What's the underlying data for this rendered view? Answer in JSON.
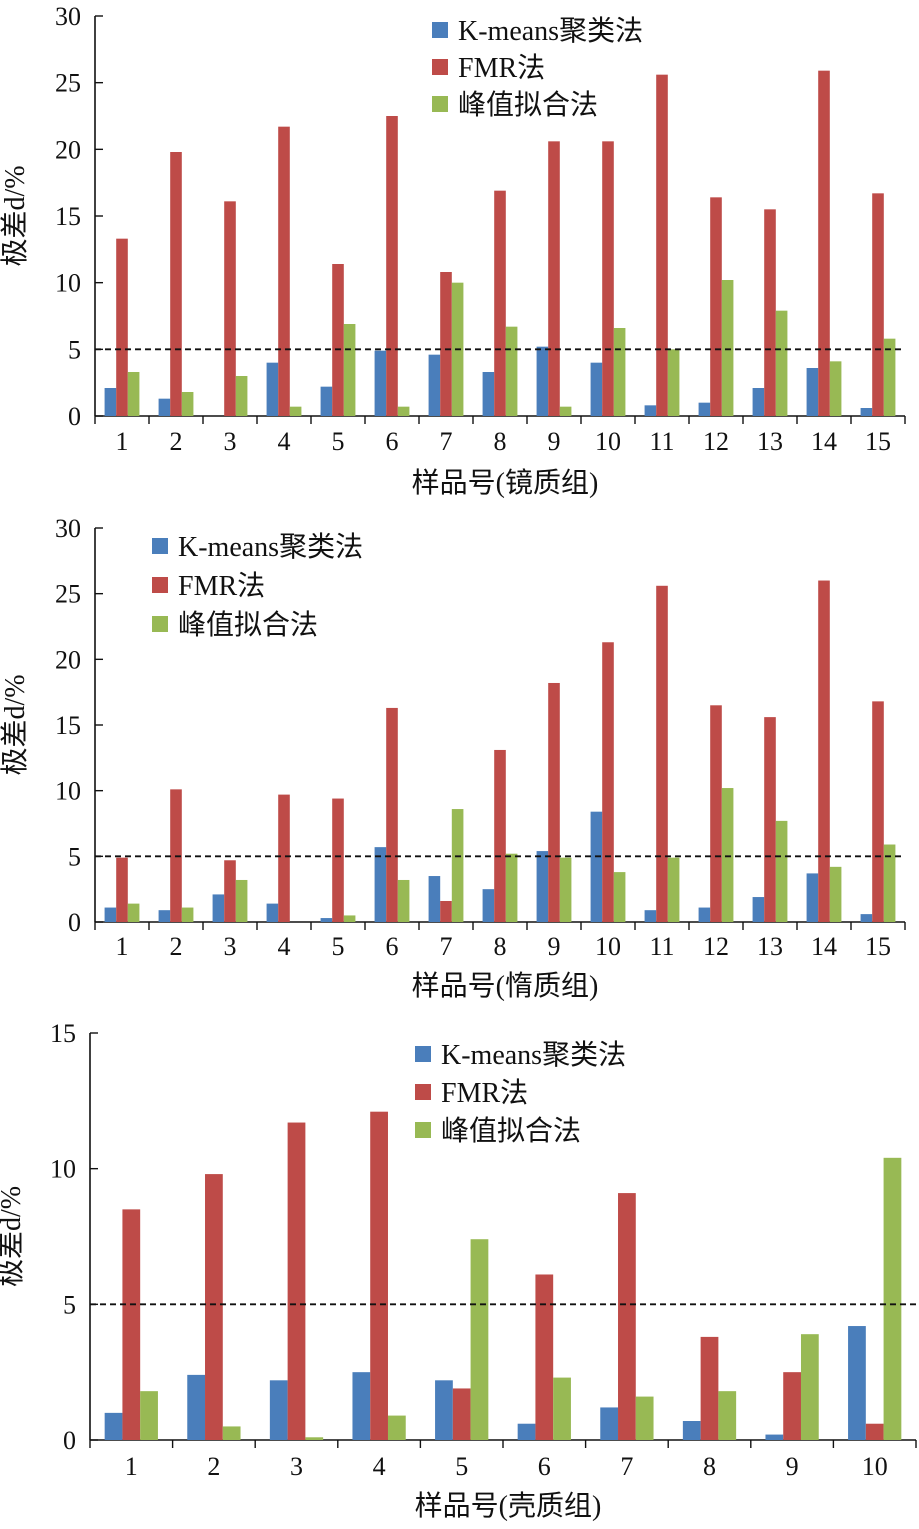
{
  "colors": {
    "kmeans": "#4a7ebb",
    "fmr": "#be4b48",
    "peak": "#98b954",
    "axis": "#111111",
    "refline": "#111111"
  },
  "chart_data": [
    {
      "type": "bar",
      "xlabel": "样品号(镜质组)",
      "ylabel": "极差d/%",
      "ylim": [
        0,
        30
      ],
      "yticks": [
        0,
        5,
        10,
        15,
        20,
        25,
        30
      ],
      "reference_line": 5,
      "legend_position": "top-center",
      "categories": [
        "1",
        "2",
        "3",
        "4",
        "5",
        "6",
        "7",
        "8",
        "9",
        "10",
        "11",
        "12",
        "13",
        "14",
        "15"
      ],
      "series": [
        {
          "name": "K-means聚类法",
          "values": [
            2.1,
            1.3,
            0,
            4.0,
            2.2,
            4.9,
            4.6,
            3.3,
            5.2,
            4.0,
            0.8,
            1.0,
            2.1,
            3.6,
            0.6
          ]
        },
        {
          "name": "FMR法",
          "values": [
            13.3,
            19.8,
            16.1,
            21.7,
            11.4,
            22.5,
            10.8,
            16.9,
            20.6,
            20.6,
            25.6,
            16.4,
            15.5,
            25.9,
            16.7
          ]
        },
        {
          "name": "峰值拟合法",
          "values": [
            3.3,
            1.8,
            3.0,
            0.7,
            6.9,
            0.7,
            10.0,
            6.7,
            0.7,
            6.6,
            5.0,
            10.2,
            7.9,
            4.1,
            5.8
          ]
        }
      ]
    },
    {
      "type": "bar",
      "xlabel": "样品号(惰质组)",
      "ylabel": "极差d/%",
      "ylim": [
        0,
        30
      ],
      "yticks": [
        0,
        5,
        10,
        15,
        20,
        25,
        30
      ],
      "reference_line": 5,
      "legend_position": "top-left",
      "categories": [
        "1",
        "2",
        "3",
        "4",
        "5",
        "6",
        "7",
        "8",
        "9",
        "10",
        "11",
        "12",
        "13",
        "14",
        "15"
      ],
      "series": [
        {
          "name": "K-means聚类法",
          "values": [
            1.1,
            0.9,
            2.1,
            1.4,
            0.3,
            5.7,
            3.5,
            2.5,
            5.4,
            8.4,
            0.9,
            1.1,
            1.9,
            3.7,
            0.6
          ]
        },
        {
          "name": "FMR法",
          "values": [
            4.9,
            10.1,
            4.7,
            9.7,
            9.4,
            16.3,
            1.6,
            13.1,
            18.2,
            21.3,
            25.6,
            16.5,
            15.6,
            26.0,
            16.8
          ]
        },
        {
          "name": "峰值拟合法",
          "values": [
            1.4,
            1.1,
            3.2,
            0,
            0.5,
            3.2,
            8.6,
            5.2,
            4.9,
            3.8,
            4.9,
            10.2,
            7.7,
            4.2,
            5.9
          ]
        }
      ]
    },
    {
      "type": "bar",
      "xlabel": "样品号(壳质组)",
      "ylabel": "极差d/%",
      "ylim": [
        0,
        15
      ],
      "yticks": [
        0,
        5,
        10,
        15
      ],
      "reference_line": 5,
      "legend_position": "top-center",
      "categories": [
        "1",
        "2",
        "3",
        "4",
        "5",
        "6",
        "7",
        "8",
        "9",
        "10"
      ],
      "series": [
        {
          "name": "K-means聚类法",
          "values": [
            1.0,
            2.4,
            2.2,
            2.5,
            2.2,
            0.6,
            1.2,
            0.7,
            0.2,
            4.2
          ]
        },
        {
          "name": "FMR法",
          "values": [
            8.5,
            9.8,
            11.7,
            12.1,
            1.9,
            6.1,
            9.1,
            3.8,
            2.5,
            0.6
          ]
        },
        {
          "name": "峰值拟合法",
          "values": [
            1.8,
            0.5,
            0.1,
            0.9,
            7.4,
            2.3,
            1.6,
            1.8,
            3.9,
            10.4
          ]
        }
      ]
    }
  ]
}
